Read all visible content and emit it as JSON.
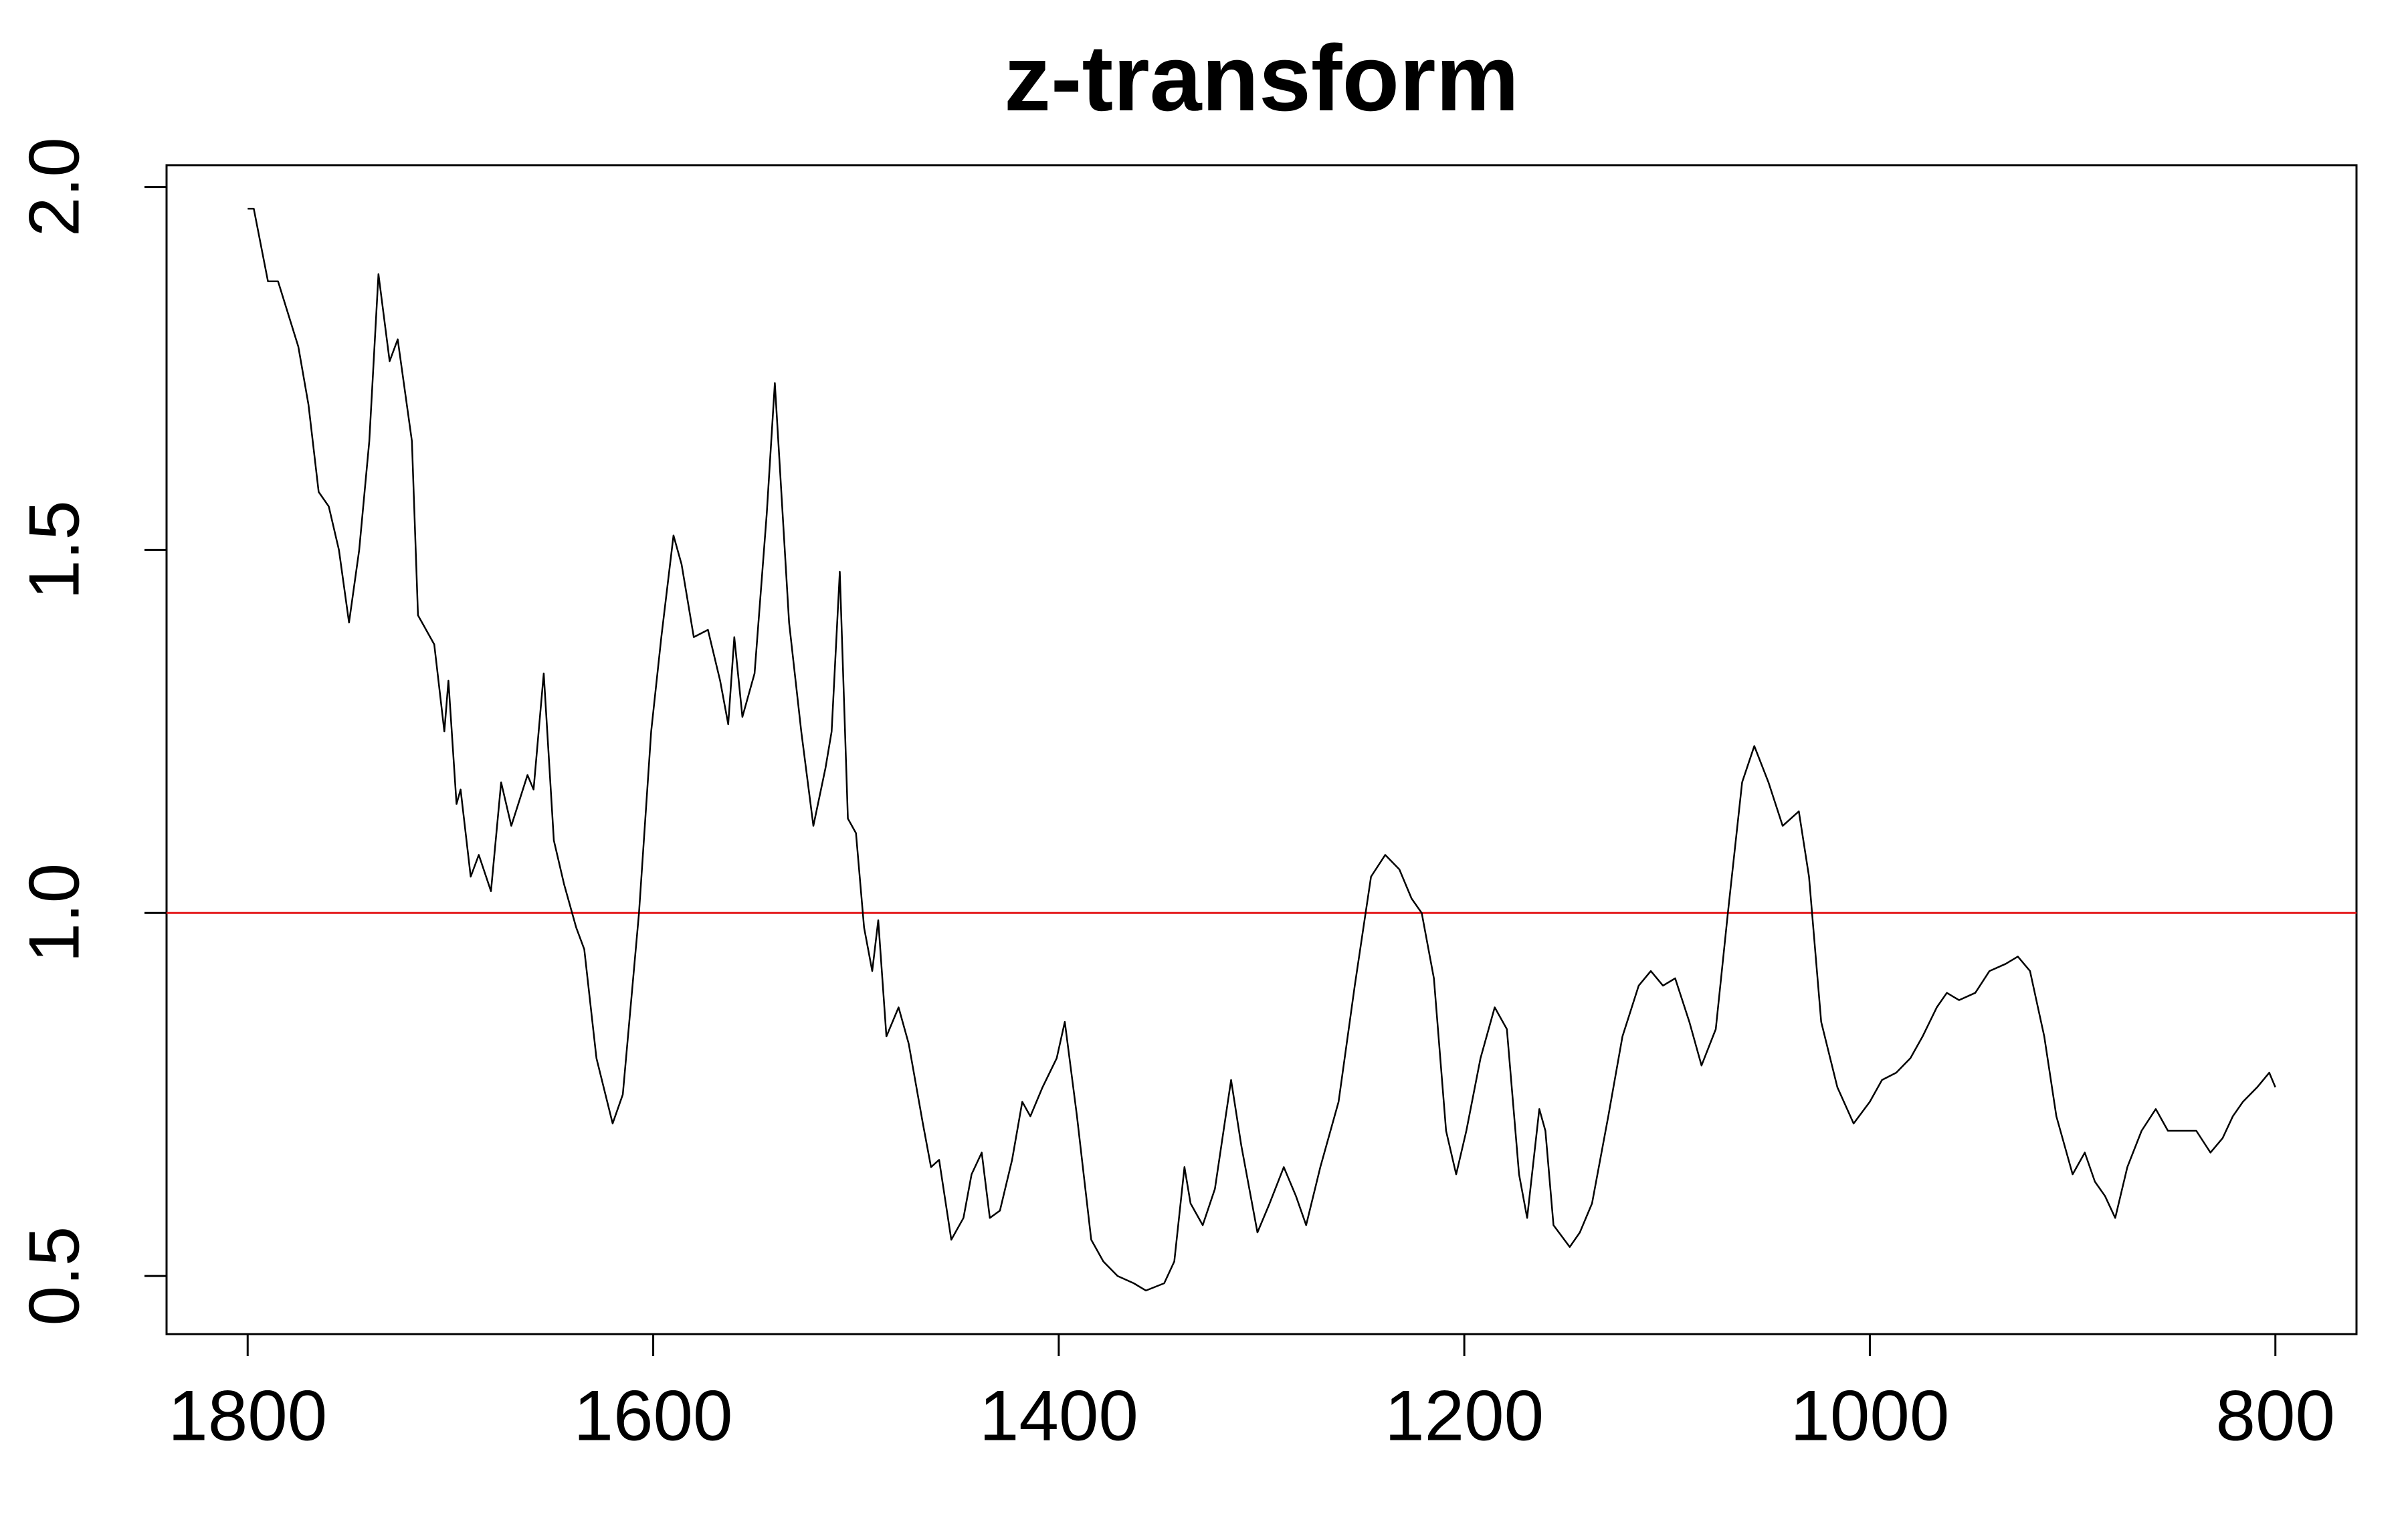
{
  "chart_data": {
    "type": "line",
    "title": "z-transform",
    "x": [
      1800,
      1797,
      1790,
      1785,
      1775,
      1770,
      1765,
      1760,
      1755,
      1750,
      1745,
      1740,
      1735.5,
      1730,
      1726,
      1719,
      1716,
      1708,
      1703,
      1701,
      1697,
      1695,
      1690,
      1686,
      1680,
      1675,
      1670,
      1662,
      1659,
      1654,
      1649,
      1644,
      1638,
      1634,
      1628,
      1620,
      1615,
      1607,
      1601,
      1596,
      1590,
      1586,
      1580,
      1573,
      1567,
      1563,
      1560,
      1556,
      1550,
      1544,
      1540,
      1533,
      1527,
      1521,
      1515,
      1512,
      1508,
      1504,
      1500,
      1496,
      1492,
      1489,
      1485,
      1479,
      1474,
      1467,
      1463,
      1459,
      1453,
      1447,
      1443,
      1438,
      1434,
      1429,
      1423,
      1418,
      1414,
      1408,
      1401,
      1397,
      1391,
      1384,
      1378,
      1371,
      1363,
      1357,
      1348,
      1343,
      1338,
      1335,
      1329,
      1323,
      1315,
      1310,
      1302,
      1296,
      1289,
      1283,
      1278,
      1271,
      1262,
      1254,
      1246,
      1239,
      1232,
      1226,
      1221,
      1215,
      1209,
      1204,
      1199,
      1192,
      1185,
      1179,
      1173,
      1169,
      1163,
      1160,
      1156,
      1148,
      1143,
      1137,
      1129,
      1122,
      1114,
      1108,
      1102,
      1096,
      1089,
      1083,
      1076,
      1070,
      1063,
      1057,
      1050,
      1043,
      1035,
      1030,
      1024,
      1016,
      1008,
      1000,
      994,
      987,
      980,
      974,
      967,
      962,
      956,
      948,
      941,
      933,
      927,
      921,
      914,
      908,
      900,
      894,
      889,
      884,
      879,
      873,
      866,
      859,
      853,
      846,
      839,
      832,
      826,
      821,
      816,
      809,
      803,
      800
    ],
    "values": [
      1.97,
      1.97,
      1.87,
      1.87,
      1.78,
      1.7,
      1.58,
      1.56,
      1.5,
      1.4,
      1.5,
      1.65,
      1.88,
      1.76,
      1.79,
      1.65,
      1.41,
      1.37,
      1.25,
      1.32,
      1.15,
      1.17,
      1.05,
      1.08,
      1.03,
      1.18,
      1.12,
      1.19,
      1.17,
      1.33,
      1.1,
      1.04,
      0.98,
      0.95,
      0.8,
      0.71,
      0.75,
      1.0,
      1.25,
      1.38,
      1.52,
      1.48,
      1.38,
      1.39,
      1.32,
      1.26,
      1.38,
      1.27,
      1.33,
      1.55,
      1.73,
      1.4,
      1.25,
      1.12,
      1.2,
      1.25,
      1.47,
      1.13,
      1.11,
      0.98,
      0.92,
      0.99,
      0.83,
      0.87,
      0.82,
      0.71,
      0.65,
      0.66,
      0.55,
      0.58,
      0.64,
      0.67,
      0.58,
      0.59,
      0.66,
      0.74,
      0.72,
      0.76,
      0.8,
      0.85,
      0.72,
      0.55,
      0.52,
      0.5,
      0.49,
      0.48,
      0.49,
      0.52,
      0.65,
      0.6,
      0.57,
      0.62,
      0.77,
      0.68,
      0.56,
      0.6,
      0.65,
      0.61,
      0.57,
      0.65,
      0.74,
      0.9,
      1.05,
      1.08,
      1.06,
      1.02,
      1.0,
      0.91,
      0.7,
      0.64,
      0.7,
      0.8,
      0.87,
      0.84,
      0.64,
      0.58,
      0.73,
      0.7,
      0.57,
      0.54,
      0.56,
      0.6,
      0.72,
      0.83,
      0.9,
      0.92,
      0.9,
      0.91,
      0.85,
      0.79,
      0.84,
      1.0,
      1.18,
      1.23,
      1.18,
      1.12,
      1.14,
      1.05,
      0.85,
      0.76,
      0.71,
      0.74,
      0.77,
      0.78,
      0.8,
      0.83,
      0.87,
      0.89,
      0.88,
      0.89,
      0.92,
      0.93,
      0.94,
      0.92,
      0.83,
      0.72,
      0.64,
      0.67,
      0.63,
      0.61,
      0.58,
      0.65,
      0.7,
      0.73,
      0.7,
      0.7,
      0.7,
      0.67,
      0.69,
      0.72,
      0.74,
      0.76,
      0.78,
      0.76
    ],
    "color": "#000000",
    "xlim": [
      1840,
      760
    ],
    "xticks": [
      1800,
      1600,
      1400,
      1200,
      1000,
      800
    ],
    "ylim": [
      0.42,
      2.03
    ],
    "yticks": [
      {
        "value": 0.5,
        "label": "0.5"
      },
      {
        "value": 1,
        "label": "1.0"
      },
      {
        "value": 1.5,
        "label": "1.5"
      },
      {
        "value": 2,
        "label": "2.0"
      }
    ],
    "hline": 1,
    "hline_color": "#e41a1c"
  }
}
